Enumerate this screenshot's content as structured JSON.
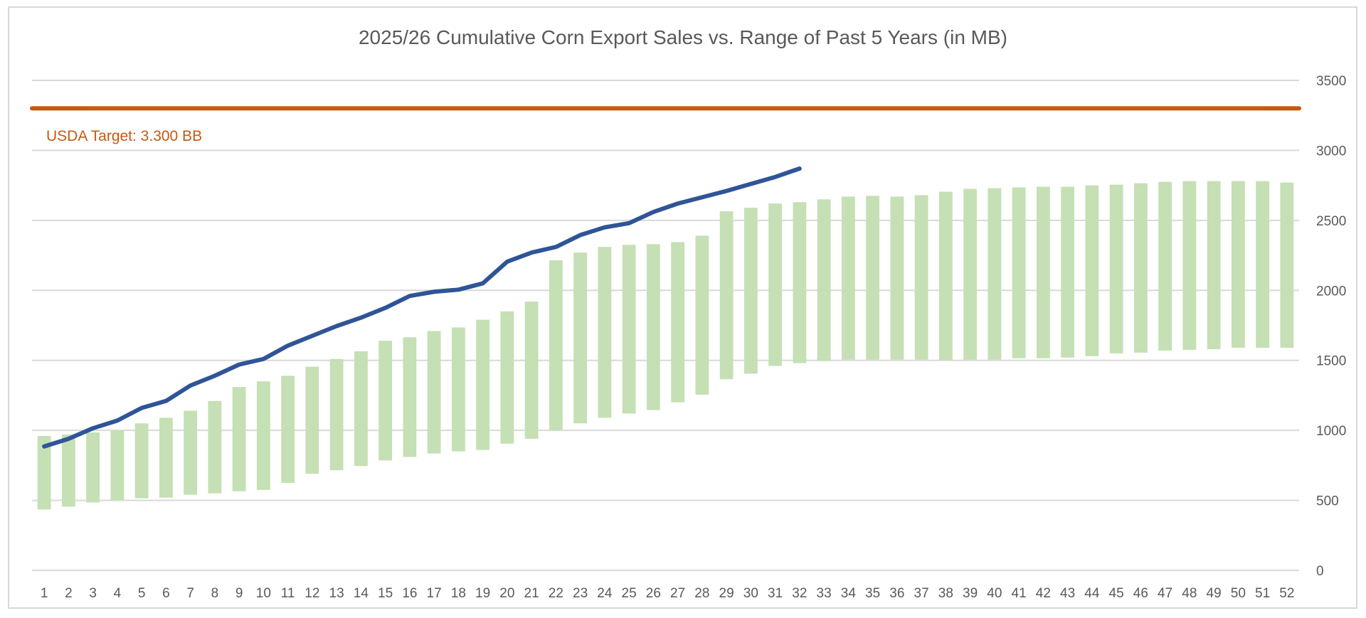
{
  "chart_data": {
    "type": "bar+line",
    "title": "2025/26 Cumulative Corn Export Sales vs. Range of Past 5 Years (in MB)",
    "xlabel": "",
    "ylabel": "",
    "ylim": [
      0,
      3500
    ],
    "yticks": [
      0,
      500,
      1000,
      1500,
      2000,
      2500,
      3000,
      3500
    ],
    "y_axis_position": "right",
    "grid": true,
    "legend": "none",
    "categories": [
      "1",
      "2",
      "3",
      "4",
      "5",
      "6",
      "7",
      "8",
      "9",
      "10",
      "11",
      "12",
      "13",
      "14",
      "15",
      "16",
      "17",
      "18",
      "19",
      "20",
      "21",
      "22",
      "23",
      "24",
      "25",
      "26",
      "27",
      "28",
      "29",
      "30",
      "31",
      "32",
      "33",
      "34",
      "35",
      "36",
      "37",
      "38",
      "39",
      "40",
      "41",
      "42",
      "43",
      "44",
      "45",
      "46",
      "47",
      "48",
      "49",
      "50",
      "51",
      "52"
    ],
    "range_bars": {
      "color": "#C5E0B4",
      "low": [
        435,
        455,
        485,
        500,
        515,
        520,
        540,
        550,
        565,
        575,
        625,
        690,
        715,
        745,
        785,
        810,
        835,
        850,
        860,
        905,
        940,
        1000,
        1050,
        1090,
        1120,
        1145,
        1200,
        1255,
        1365,
        1405,
        1460,
        1480,
        1495,
        1505,
        1505,
        1505,
        1505,
        1500,
        1505,
        1505,
        1515,
        1515,
        1520,
        1530,
        1550,
        1555,
        1570,
        1575,
        1580,
        1590,
        1590,
        1590
      ],
      "high": [
        960,
        970,
        985,
        1000,
        1050,
        1090,
        1140,
        1210,
        1310,
        1350,
        1390,
        1455,
        1510,
        1565,
        1640,
        1665,
        1710,
        1735,
        1790,
        1850,
        1920,
        2215,
        2270,
        2310,
        2325,
        2330,
        2345,
        2390,
        2565,
        2590,
        2620,
        2630,
        2650,
        2670,
        2675,
        2670,
        2680,
        2705,
        2725,
        2730,
        2735,
        2740,
        2740,
        2750,
        2755,
        2765,
        2775,
        2780,
        2780,
        2780,
        2780,
        2770
      ]
    },
    "line": {
      "color": "#2F5597",
      "values": [
        885,
        940,
        1015,
        1070,
        1160,
        1210,
        1320,
        1390,
        1470,
        1510,
        1605,
        1675,
        1745,
        1805,
        1875,
        1960,
        1990,
        2005,
        2050,
        2205,
        2270,
        2310,
        2395,
        2450,
        2480,
        2560,
        2620,
        2665,
        2710,
        2760,
        2810,
        2870
      ]
    },
    "target": {
      "value": 3300,
      "color": "#C55A11",
      "label": "USDA Target: 3.300 BB"
    }
  }
}
